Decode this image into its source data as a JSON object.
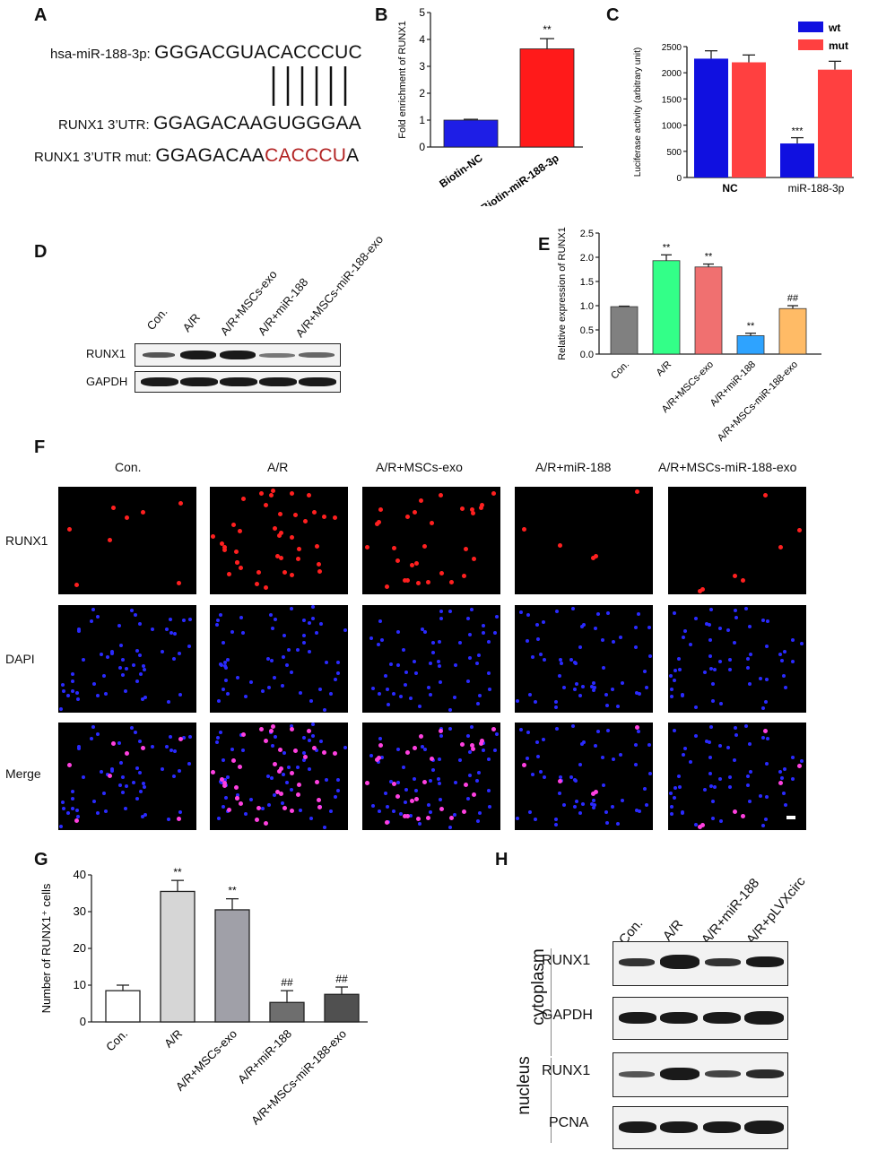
{
  "panels": {
    "A": "A",
    "B": "B",
    "C": "C",
    "D": "D",
    "E": "E",
    "F": "F",
    "G": "G",
    "H": "H"
  },
  "panel_a": {
    "rows": [
      {
        "label": "hsa-miR-188-3p:",
        "seq": "GGGACGUACACCCUC",
        "mut": ""
      },
      {
        "label": "RUNX1 3’UTR:",
        "seq": "GGAGACAAGUGGGAA",
        "mut": ""
      },
      {
        "label": "RUNX1 3’UTR mut:",
        "seq": "GGAGACAA",
        "mut": "CACCCU",
        "tail": "A"
      }
    ]
  },
  "panel_d": {
    "lanes": [
      "Con.",
      "A/R",
      "A/R+MSCs-exo",
      "A/R+miR-188",
      "A/R+MSCs-miR-188-exo"
    ],
    "rows": [
      "RUNX1",
      "GAPDH"
    ]
  },
  "panel_f": {
    "columns": [
      "Con.",
      "A/R",
      "A/R+MSCs-exo",
      "A/R+miR-188",
      "A/R+MSCs-miR-188-exo"
    ],
    "rows": [
      "RUNX1",
      "DAPI",
      "Merge"
    ]
  },
  "panel_h": {
    "lanes": [
      "Con.",
      "A/R",
      "A/R+miR-188",
      "A/R+pLVXcirc"
    ],
    "groups": [
      "cytoplasm",
      "nucleus"
    ],
    "rows": [
      "RUNX1",
      "GAPDH",
      "RUNX1",
      "PCNA"
    ]
  },
  "chart_data": [
    {
      "panel": "B",
      "type": "bar",
      "categories": [
        "Biotin-NC",
        "Biotin-miR-188-3p"
      ],
      "values": [
        1.0,
        3.65
      ],
      "errors": [
        0.03,
        0.38
      ],
      "colors": [
        "#1e1ee6",
        "#ff1a1a"
      ],
      "sig": [
        "",
        "**"
      ],
      "ylabel": "Fold enrichment of RUNX1",
      "ylim": [
        0,
        5
      ],
      "yticks": [
        0,
        1,
        2,
        3,
        4,
        5
      ]
    },
    {
      "panel": "C",
      "type": "bar",
      "categories": [
        "NC",
        "miR-188-3p"
      ],
      "series": [
        {
          "name": "wt",
          "values": [
            2270,
            650
          ],
          "errors": [
            150,
            110
          ],
          "color": "#1010e0"
        },
        {
          "name": "mut",
          "values": [
            2200,
            2060
          ],
          "errors": [
            140,
            160
          ],
          "color": "#ff4040"
        }
      ],
      "sig": [
        [
          "",
          ""
        ],
        [
          "***",
          ""
        ]
      ],
      "ylabel": "Luciferase activity (arbitrary unit)",
      "ylim": [
        0,
        2500
      ],
      "yticks": [
        0,
        500,
        1000,
        1500,
        2000,
        2500
      ],
      "legend": "top-right"
    },
    {
      "panel": "E",
      "type": "bar",
      "categories": [
        "Con.",
        "A/R",
        "A/R+MSCs-exo",
        "A/R+miR-188",
        "A/R+MSCs-miR-188-exo"
      ],
      "values": [
        0.98,
        1.93,
        1.8,
        0.38,
        0.94
      ],
      "errors": [
        0.01,
        0.12,
        0.06,
        0.05,
        0.06
      ],
      "colors": [
        "#808080",
        "#33ff88",
        "#f07070",
        "#2ea3ff",
        "#ffbb66"
      ],
      "sig": [
        "",
        "**",
        "**",
        "**",
        "##"
      ],
      "ylabel": "Relative expression of RUNX1",
      "ylim": [
        0,
        2.5
      ],
      "yticks": [
        0.0,
        0.5,
        1.0,
        1.5,
        2.0,
        2.5
      ]
    },
    {
      "panel": "G",
      "type": "bar",
      "categories": [
        "Con.",
        "A/R",
        "A/R+MSCs-exo",
        "A/R+miR-188",
        "A/R+MSCs-miR-188-exo"
      ],
      "values": [
        8.5,
        35.5,
        30.5,
        5.3,
        7.5
      ],
      "errors": [
        1.5,
        3.0,
        3.0,
        3.2,
        2.0
      ],
      "colors": [
        "#ffffff",
        "#d6d6d6",
        "#a0a0a8",
        "#6e6e6e",
        "#505050"
      ],
      "sig": [
        "",
        "**",
        "**",
        "##",
        "##"
      ],
      "ylabel": "Number of RUNX1⁺ cells",
      "ylim": [
        0,
        40
      ],
      "yticks": [
        0,
        10,
        20,
        30,
        40
      ]
    }
  ]
}
